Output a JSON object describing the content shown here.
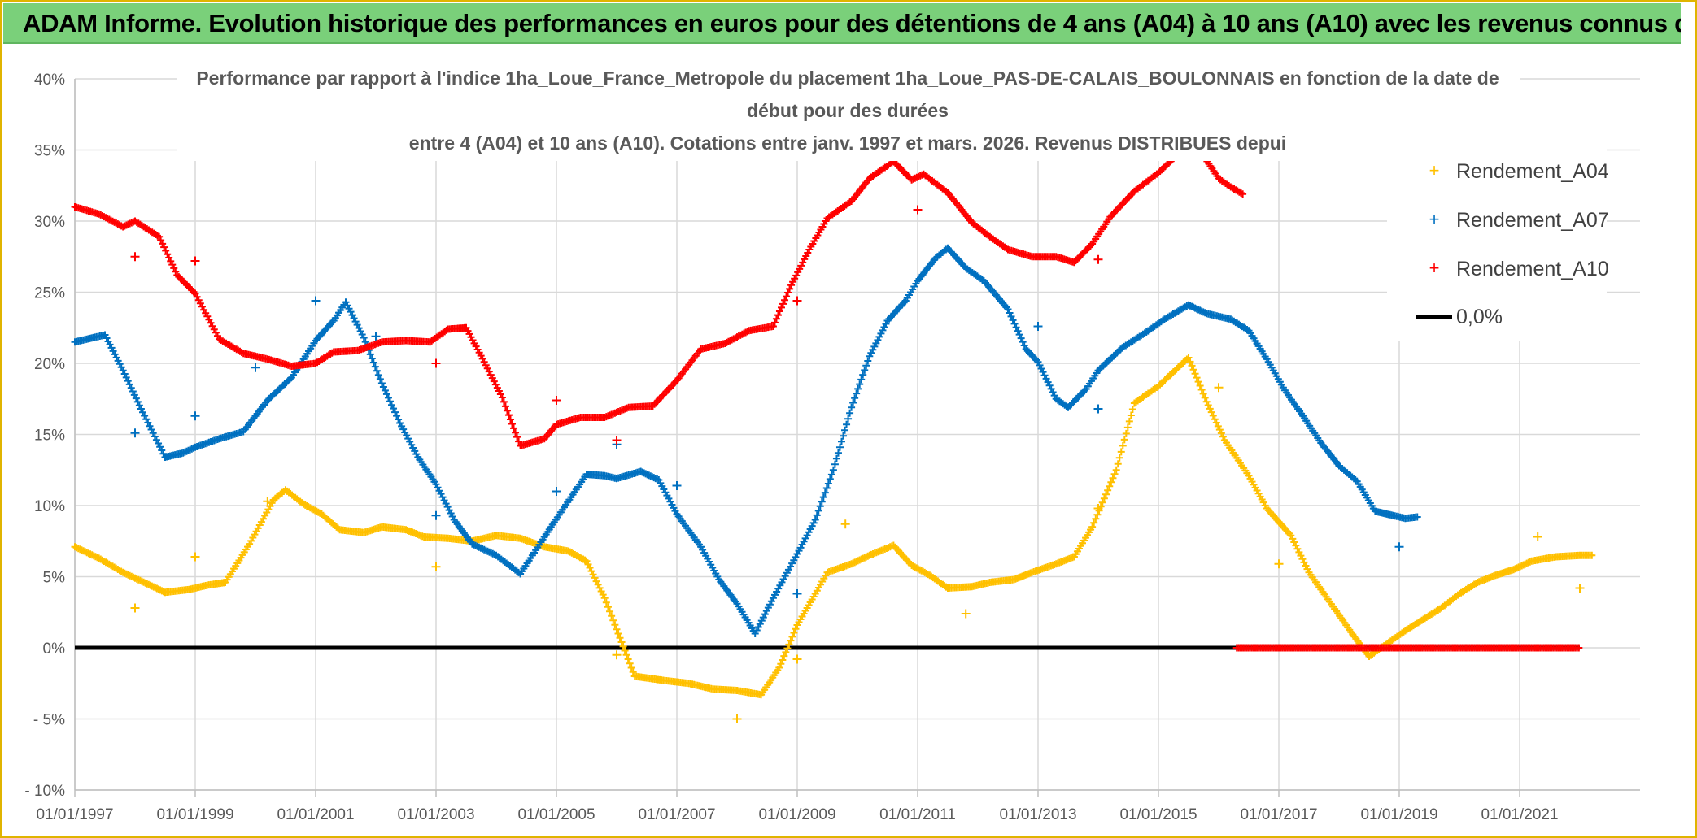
{
  "banner": {
    "title": "ADAM Informe. Evolution historique des performances en euros pour des détentions de 4 ans (A04) à 10 ans (A10) avec les revenus connus distribués"
  },
  "chart_data": {
    "type": "scatter",
    "title_lines": [
      "Performance par rapport à l'indice 1ha_Loue_France_Metropole  du placement 1ha_Loue_PAS-DE-CALAIS_BOULONNAIS en fonction de la date de",
      "début pour des durées",
      "entre 4 (A04) et 10 ans (A10). Cotations entre janv. 1997 et mars. 2026. Revenus DISTRIBUES depui"
    ],
    "x_axis": {
      "min": 1997.0,
      "max": 2023.0,
      "tick_values": [
        1997,
        1999,
        2001,
        2003,
        2005,
        2007,
        2009,
        2011,
        2013,
        2015,
        2017,
        2019,
        2021
      ],
      "tick_labels": [
        "01/01/1997",
        "01/01/1999",
        "01/01/2001",
        "01/01/2003",
        "01/01/2005",
        "01/01/2007",
        "01/01/2009",
        "01/01/2011",
        "01/01/2013",
        "01/01/2015",
        "01/01/2017",
        "01/01/2019",
        "01/01/2021"
      ]
    },
    "y_axis": {
      "min": -10,
      "max": 40,
      "tick_values": [
        40,
        35,
        30,
        25,
        20,
        15,
        10,
        5,
        0,
        -5,
        -10
      ],
      "tick_labels": [
        "40%",
        "35%",
        "30%",
        "25%",
        "20%",
        "15%",
        "10%",
        "5%",
        "0%",
        "- 5%",
        "- 10%"
      ],
      "grid": true
    },
    "series": [
      {
        "name": "Rendement_A04",
        "color": "#ffc000",
        "marker": "plus",
        "points": [
          [
            1997.0,
            7.1
          ],
          [
            1997.4,
            6.3
          ],
          [
            1997.8,
            5.3
          ],
          [
            1998.2,
            4.5
          ],
          [
            1998.5,
            3.9
          ],
          [
            1998.9,
            4.1
          ],
          [
            1999.2,
            4.4
          ],
          [
            1999.5,
            4.6
          ],
          [
            1999.9,
            7.3
          ],
          [
            2000.3,
            10.4
          ],
          [
            2000.5,
            11.1
          ],
          [
            2000.8,
            10.1
          ],
          [
            2001.1,
            9.4
          ],
          [
            2001.4,
            8.3
          ],
          [
            2001.8,
            8.1
          ],
          [
            2002.1,
            8.5
          ],
          [
            2002.5,
            8.3
          ],
          [
            2002.8,
            7.8
          ],
          [
            2003.2,
            7.7
          ],
          [
            2003.6,
            7.5
          ],
          [
            2004.0,
            7.9
          ],
          [
            2004.4,
            7.7
          ],
          [
            2004.8,
            7.1
          ],
          [
            2005.2,
            6.8
          ],
          [
            2005.5,
            6.1
          ],
          [
            2005.8,
            3.5
          ],
          [
            2006.0,
            1.3
          ],
          [
            2006.3,
            -2.0
          ],
          [
            2006.8,
            -2.3
          ],
          [
            2007.2,
            -2.5
          ],
          [
            2007.6,
            -2.9
          ],
          [
            2008.0,
            -3.0
          ],
          [
            2008.4,
            -3.3
          ],
          [
            2008.7,
            -1.4
          ],
          [
            2009.0,
            1.6
          ],
          [
            2009.3,
            3.8
          ],
          [
            2009.5,
            5.3
          ],
          [
            2009.9,
            5.9
          ],
          [
            2010.2,
            6.5
          ],
          [
            2010.6,
            7.2
          ],
          [
            2010.9,
            5.8
          ],
          [
            2011.2,
            5.1
          ],
          [
            2011.5,
            4.2
          ],
          [
            2011.9,
            4.3
          ],
          [
            2012.2,
            4.6
          ],
          [
            2012.6,
            4.8
          ],
          [
            2012.9,
            5.3
          ],
          [
            2013.3,
            5.9
          ],
          [
            2013.6,
            6.4
          ],
          [
            2013.9,
            8.5
          ],
          [
            2014.3,
            12.5
          ],
          [
            2014.6,
            17.2
          ],
          [
            2015.0,
            18.4
          ],
          [
            2015.3,
            19.6
          ],
          [
            2015.5,
            20.4
          ],
          [
            2015.8,
            17.3
          ],
          [
            2016.1,
            14.6
          ],
          [
            2016.5,
            12.1
          ],
          [
            2016.8,
            9.8
          ],
          [
            2017.2,
            7.9
          ],
          [
            2017.5,
            5.3
          ],
          [
            2017.9,
            2.9
          ],
          [
            2018.2,
            1.1
          ],
          [
            2018.5,
            -0.6
          ],
          [
            2018.8,
            0.3
          ],
          [
            2019.1,
            1.2
          ],
          [
            2019.4,
            2.0
          ],
          [
            2019.7,
            2.8
          ],
          [
            2020.0,
            3.8
          ],
          [
            2020.3,
            4.6
          ],
          [
            2020.6,
            5.1
          ],
          [
            2020.9,
            5.5
          ],
          [
            2021.2,
            6.1
          ],
          [
            2021.6,
            6.4
          ],
          [
            2022.0,
            6.5
          ],
          [
            2022.2,
            6.5
          ]
        ],
        "outliers": [
          [
            1998.0,
            2.8
          ],
          [
            1999.0,
            6.4
          ],
          [
            2000.2,
            10.3
          ],
          [
            2003.0,
            5.7
          ],
          [
            2006.0,
            -0.5
          ],
          [
            2008.0,
            -5.0
          ],
          [
            2009.0,
            -0.8
          ],
          [
            2009.8,
            8.7
          ],
          [
            2011.8,
            2.4
          ],
          [
            2014.0,
            9.8
          ],
          [
            2016.0,
            18.3
          ],
          [
            2017.0,
            5.9
          ],
          [
            2021.3,
            7.8
          ],
          [
            2022.0,
            4.2
          ]
        ]
      },
      {
        "name": "Rendement_A07",
        "color": "#0070c0",
        "marker": "plus",
        "points": [
          [
            1997.0,
            21.5
          ],
          [
            1997.5,
            22.0
          ],
          [
            1997.8,
            19.5
          ],
          [
            1998.1,
            16.8
          ],
          [
            1998.5,
            13.4
          ],
          [
            1998.8,
            13.7
          ],
          [
            1999.0,
            14.1
          ],
          [
            1999.4,
            14.7
          ],
          [
            1999.8,
            15.2
          ],
          [
            2000.2,
            17.4
          ],
          [
            2000.6,
            19.0
          ],
          [
            2001.0,
            21.6
          ],
          [
            2001.3,
            23.0
          ],
          [
            2001.5,
            24.3
          ],
          [
            2001.8,
            21.8
          ],
          [
            2002.1,
            18.6
          ],
          [
            2002.4,
            15.8
          ],
          [
            2002.7,
            13.4
          ],
          [
            2003.0,
            11.5
          ],
          [
            2003.3,
            9.0
          ],
          [
            2003.6,
            7.3
          ],
          [
            2004.0,
            6.5
          ],
          [
            2004.4,
            5.2
          ],
          [
            2004.8,
            7.8
          ],
          [
            2005.1,
            9.7
          ],
          [
            2005.5,
            12.2
          ],
          [
            2005.8,
            12.1
          ],
          [
            2006.0,
            11.9
          ],
          [
            2006.4,
            12.4
          ],
          [
            2006.7,
            11.8
          ],
          [
            2007.0,
            9.4
          ],
          [
            2007.4,
            7.1
          ],
          [
            2007.7,
            4.8
          ],
          [
            2008.0,
            3.1
          ],
          [
            2008.3,
            1.0
          ],
          [
            2008.6,
            3.5
          ],
          [
            2009.0,
            6.6
          ],
          [
            2009.3,
            9.0
          ],
          [
            2009.6,
            12.5
          ],
          [
            2009.9,
            16.9
          ],
          [
            2010.2,
            20.5
          ],
          [
            2010.5,
            23.0
          ],
          [
            2010.8,
            24.4
          ],
          [
            2011.0,
            25.8
          ],
          [
            2011.3,
            27.4
          ],
          [
            2011.5,
            28.1
          ],
          [
            2011.8,
            26.7
          ],
          [
            2012.1,
            25.8
          ],
          [
            2012.5,
            23.8
          ],
          [
            2012.8,
            21.0
          ],
          [
            2013.0,
            20.1
          ],
          [
            2013.3,
            17.5
          ],
          [
            2013.5,
            16.9
          ],
          [
            2013.8,
            18.2
          ],
          [
            2014.0,
            19.5
          ],
          [
            2014.4,
            21.1
          ],
          [
            2014.8,
            22.2
          ],
          [
            2015.1,
            23.1
          ],
          [
            2015.5,
            24.1
          ],
          [
            2015.8,
            23.5
          ],
          [
            2016.2,
            23.1
          ],
          [
            2016.5,
            22.3
          ],
          [
            2016.8,
            20.3
          ],
          [
            2017.1,
            18.1
          ],
          [
            2017.4,
            16.3
          ],
          [
            2017.7,
            14.4
          ],
          [
            2018.0,
            12.8
          ],
          [
            2018.3,
            11.7
          ],
          [
            2018.6,
            9.6
          ],
          [
            2018.9,
            9.3
          ],
          [
            2019.1,
            9.1
          ],
          [
            2019.3,
            9.2
          ]
        ],
        "outliers": [
          [
            1998.0,
            15.1
          ],
          [
            1999.0,
            16.3
          ],
          [
            2000.0,
            19.7
          ],
          [
            2001.0,
            24.4
          ],
          [
            2002.0,
            21.9
          ],
          [
            2003.0,
            9.3
          ],
          [
            2005.0,
            11.0
          ],
          [
            2006.0,
            14.3
          ],
          [
            2007.0,
            11.4
          ],
          [
            2009.0,
            3.8
          ],
          [
            2013.0,
            22.6
          ],
          [
            2014.0,
            16.8
          ],
          [
            2019.0,
            7.1
          ]
        ]
      },
      {
        "name": "Rendement_A10",
        "color": "#ff0000",
        "marker": "plus",
        "points": [
          [
            1997.0,
            31.0
          ],
          [
            1997.4,
            30.5
          ],
          [
            1997.8,
            29.6
          ],
          [
            1998.0,
            30.0
          ],
          [
            1998.4,
            28.9
          ],
          [
            1998.7,
            26.2
          ],
          [
            1999.0,
            24.9
          ],
          [
            1999.4,
            21.7
          ],
          [
            1999.8,
            20.7
          ],
          [
            2000.2,
            20.3
          ],
          [
            2000.6,
            19.8
          ],
          [
            2001.0,
            20.0
          ],
          [
            2001.3,
            20.8
          ],
          [
            2001.7,
            20.9
          ],
          [
            2002.1,
            21.5
          ],
          [
            2002.5,
            21.6
          ],
          [
            2002.9,
            21.5
          ],
          [
            2003.2,
            22.4
          ],
          [
            2003.5,
            22.5
          ],
          [
            2003.8,
            20.1
          ],
          [
            2004.1,
            17.6
          ],
          [
            2004.4,
            14.2
          ],
          [
            2004.8,
            14.7
          ],
          [
            2005.0,
            15.7
          ],
          [
            2005.4,
            16.2
          ],
          [
            2005.8,
            16.2
          ],
          [
            2006.2,
            16.9
          ],
          [
            2006.6,
            17.0
          ],
          [
            2007.0,
            18.8
          ],
          [
            2007.4,
            21.0
          ],
          [
            2007.8,
            21.4
          ],
          [
            2008.2,
            22.3
          ],
          [
            2008.6,
            22.6
          ],
          [
            2008.9,
            25.5
          ],
          [
            2009.2,
            28.0
          ],
          [
            2009.5,
            30.2
          ],
          [
            2009.9,
            31.4
          ],
          [
            2010.2,
            33.0
          ],
          [
            2010.6,
            34.2
          ],
          [
            2010.9,
            32.9
          ],
          [
            2011.1,
            33.3
          ],
          [
            2011.5,
            32.0
          ],
          [
            2011.9,
            29.9
          ],
          [
            2012.2,
            28.9
          ],
          [
            2012.5,
            28.0
          ],
          [
            2012.9,
            27.5
          ],
          [
            2013.3,
            27.5
          ],
          [
            2013.6,
            27.1
          ],
          [
            2013.9,
            28.4
          ],
          [
            2014.2,
            30.3
          ],
          [
            2014.6,
            32.1
          ],
          [
            2015.0,
            33.4
          ],
          [
            2015.2,
            34.2
          ],
          [
            2015.5,
            35.5
          ],
          [
            2015.7,
            34.9
          ],
          [
            2016.0,
            33.0
          ],
          [
            2016.2,
            32.4
          ],
          [
            2016.4,
            31.9
          ]
        ],
        "outliers": [
          [
            1998.0,
            27.5
          ],
          [
            1999.0,
            27.2
          ],
          [
            2003.0,
            20.0
          ],
          [
            2005.0,
            17.4
          ],
          [
            2006.0,
            14.6
          ],
          [
            2009.0,
            24.4
          ],
          [
            2011.0,
            30.8
          ],
          [
            2014.0,
            27.3
          ]
        ],
        "zero_segment": [
          2016.3,
          2022.0
        ]
      },
      {
        "name": "0,0%",
        "color": "#000000",
        "type": "line",
        "points": [
          [
            1997.0,
            0.0
          ],
          [
            2022.0,
            0.0
          ]
        ]
      }
    ],
    "legend": {
      "position": "right",
      "entries": [
        "Rendement_A04",
        "Rendement_A07",
        "Rendement_A10",
        "0,0%"
      ]
    }
  }
}
